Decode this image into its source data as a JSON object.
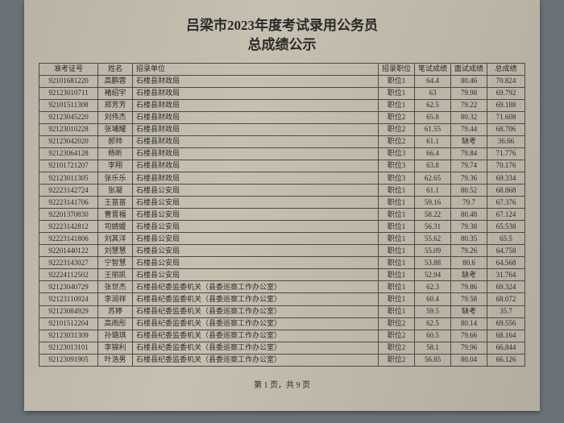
{
  "title_line1": "吕梁市2023年度考试录用公务员",
  "title_line2": "总成绩公示",
  "footer": "第 1 页，共 9 页",
  "columns": [
    "准考证号",
    "姓名",
    "招录单位",
    "招录职位",
    "笔试成绩",
    "面试成绩",
    "总成绩"
  ],
  "col_classes": [
    "c-id",
    "c-name",
    "c-unit",
    "c-pos",
    "c-s1",
    "c-s2",
    "c-tot"
  ],
  "rows": [
    [
      "92101681220",
      "高鹏蓉",
      "石楼县财政局",
      "职位1",
      "64.4",
      "80.46",
      "70.824"
    ],
    [
      "92123010711",
      "褚绍宇",
      "石楼县财政局",
      "职位1",
      "63",
      "79.98",
      "69.792"
    ],
    [
      "92101511308",
      "郑芳芳",
      "石楼县财政局",
      "职位1",
      "62.5",
      "79.22",
      "69.188"
    ],
    [
      "92123045220",
      "刘伟杰",
      "石楼县财政局",
      "职位2",
      "65.8",
      "80.32",
      "71.608"
    ],
    [
      "92123010228",
      "张埔耀",
      "石楼县财政局",
      "职位2",
      "61.55",
      "79.44",
      "68.706"
    ],
    [
      "92123042020",
      "郝帅",
      "石楼县财政局",
      "职位2",
      "61.1",
      "缺考",
      "36.66"
    ],
    [
      "92123064128",
      "杨昕",
      "石楼县财政局",
      "职位3",
      "66.4",
      "79.84",
      "71.776"
    ],
    [
      "92101721207",
      "李翔",
      "石楼县财政局",
      "职位3",
      "63.8",
      "79.74",
      "70.176"
    ],
    [
      "92123011305",
      "张乐乐",
      "石楼县财政局",
      "职位3",
      "62.65",
      "79.36",
      "69.334"
    ],
    [
      "92223142724",
      "张凝",
      "石楼县公安局",
      "职位1",
      "61.1",
      "80.52",
      "68.868"
    ],
    [
      "92223141706",
      "王苗苗",
      "石楼县公安局",
      "职位1",
      "59.16",
      "79.7",
      "67.376"
    ],
    [
      "92201370830",
      "曹晋福",
      "石楼县公安局",
      "职位1",
      "58.22",
      "80.48",
      "67.124"
    ],
    [
      "92223142812",
      "司婧媛",
      "石楼县公安局",
      "职位1",
      "56.31",
      "79.38",
      "65.538"
    ],
    [
      "92223141806",
      "刘其洋",
      "石楼县公安局",
      "职位1",
      "55.62",
      "80.35",
      "65.5"
    ],
    [
      "92201440122",
      "刘慧慧",
      "石楼县公安局",
      "职位1",
      "55.09",
      "79.26",
      "64.758"
    ],
    [
      "92223143027",
      "宁智慧",
      "石楼县公安局",
      "职位1",
      "53.88",
      "80.6",
      "64.568"
    ],
    [
      "92224112502",
      "王丽凯",
      "石楼县公安局",
      "职位1",
      "52.94",
      "缺考",
      "31.764"
    ],
    [
      "92123040729",
      "张世杰",
      "石楼县纪委监委机关（县委巡察工作办公室）",
      "职位1",
      "62.3",
      "79.86",
      "69.324"
    ],
    [
      "92123110924",
      "李润祥",
      "石楼县纪委监委机关（县委巡察工作办公室）",
      "职位1",
      "60.4",
      "79.58",
      "68.072"
    ],
    [
      "92123084929",
      "苏婷",
      "石楼县纪委监委机关（县委巡察工作办公室）",
      "职位1",
      "59.5",
      "缺考",
      "35.7"
    ],
    [
      "92101512204",
      "高雨彤",
      "石楼县纪委监委机关（县委巡察工作办公室）",
      "职位2",
      "62.5",
      "80.14",
      "69.556"
    ],
    [
      "92123031309",
      "孙璐琪",
      "石楼县纪委监委机关（县委巡察工作办公室）",
      "职位2",
      "60.5",
      "79.66",
      "68.164"
    ],
    [
      "92123013101",
      "李锦利",
      "石楼县纪委监委机关（县委巡察工作办公室）",
      "职位2",
      "58.1",
      "79.96",
      "66.844"
    ],
    [
      "92123091905",
      "叶浩男",
      "石楼县纪委监委机关（县委巡察工作办公室）",
      "职位2",
      "56.85",
      "80.04",
      "66.126"
    ]
  ]
}
